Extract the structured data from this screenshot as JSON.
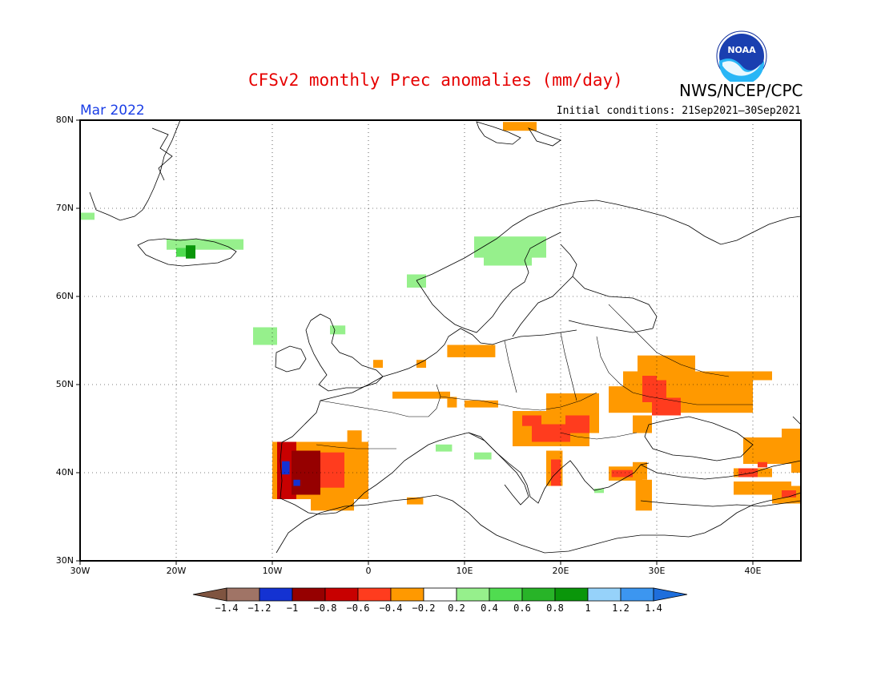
{
  "title": "CFSv2 monthly Prec anomalies (mm/day)",
  "organization": "NWS/NCEP/CPC",
  "logo_text": "NOAA",
  "month": "Mar 2022",
  "initial_conditions": "Initial conditions: 21Sep2021–30Sep2021",
  "lat_labels": [
    "80N",
    "70N",
    "60N",
    "50N",
    "40N",
    "30N"
  ],
  "lon_labels": [
    "30W",
    "20W",
    "10W",
    "0",
    "10E",
    "20E",
    "30E",
    "40E"
  ],
  "colorbar": {
    "labels": [
      "−1.4",
      "−1.2",
      "−1",
      "−0.8",
      "−0.6",
      "−0.4",
      "−0.2",
      "0.2",
      "0.4",
      "0.6",
      "0.8",
      "1",
      "1.2",
      "1.4"
    ],
    "colors": [
      "#7f5440",
      "#a07466",
      "#1432d2",
      "#960000",
      "#c80000",
      "#ff3c1e",
      "#ff9900",
      "#ffffff",
      "#96f08c",
      "#50dc50",
      "#28b428",
      "#0a960a",
      "#96d2fa",
      "#3c96f0",
      "#1e6edc"
    ]
  },
  "anomaly_colors": {
    "strong_wet": "#0a960a",
    "wet": "#50dc50",
    "light_wet": "#96f08c",
    "dry": "#ff9900",
    "drier": "#ff3c1e",
    "very_dry": "#c80000",
    "extreme_dry": "#960000",
    "extreme_wet": "#1432d2"
  }
}
